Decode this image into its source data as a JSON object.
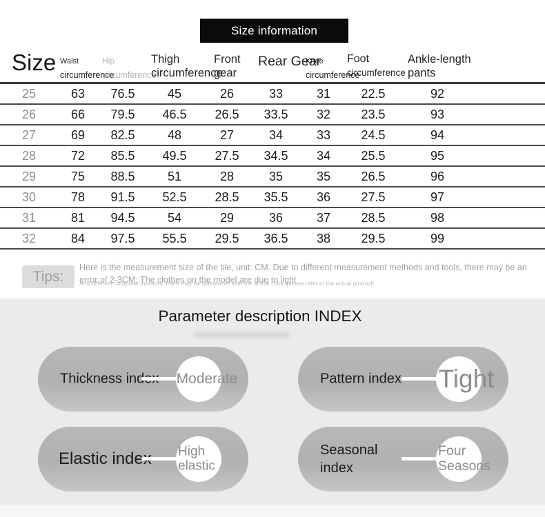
{
  "banner": {
    "title": "Size information"
  },
  "size_table": {
    "size_header": "Size",
    "columns": [
      {
        "line1": "Waist",
        "line2": "circumference"
      },
      {
        "line1": "Hip",
        "line2": "circumference"
      },
      {
        "line1": "Thigh",
        "line2": "circumference"
      },
      {
        "line1": "Front",
        "line2": "gear"
      },
      {
        "line1": "Rear Gear",
        "line2": ""
      },
      {
        "line1": "Knee",
        "line2": "circumference"
      },
      {
        "line1": "Foot",
        "line2": "circumference"
      },
      {
        "line1": "Ankle-length",
        "line2": "pants"
      }
    ],
    "rows": [
      {
        "size": "25",
        "values": [
          "63",
          "76.5",
          "45",
          "26",
          "33",
          "31",
          "22.5",
          "92"
        ]
      },
      {
        "size": "26",
        "values": [
          "66",
          "79.5",
          "46.5",
          "26.5",
          "33.5",
          "32",
          "23.5",
          "93"
        ]
      },
      {
        "size": "27",
        "values": [
          "69",
          "82.5",
          "48",
          "27",
          "34",
          "33",
          "24.5",
          "94"
        ]
      },
      {
        "size": "28",
        "values": [
          "72",
          "85.5",
          "49.5",
          "27.5",
          "34.5",
          "34",
          "25.5",
          "95"
        ]
      },
      {
        "size": "29",
        "values": [
          "75",
          "88.5",
          "51",
          "28",
          "35",
          "35",
          "26.5",
          "96"
        ]
      },
      {
        "size": "30",
        "values": [
          "78",
          "91.5",
          "52.5",
          "28.5",
          "35.5",
          "36",
          "27.5",
          "97"
        ]
      },
      {
        "size": "31",
        "values": [
          "81",
          "94.5",
          "54",
          "29",
          "36",
          "37",
          "28.5",
          "98"
        ]
      },
      {
        "size": "32",
        "values": [
          "84",
          "97.5",
          "55.5",
          "29.5",
          "36.5",
          "38",
          "29.5",
          "99"
        ]
      }
    ],
    "unit": "CM"
  },
  "tips": {
    "label": "Tips:",
    "text": "Here is the measurement size of the tile, unit: CM. Due to different measurement methods and tools, there may be an error of 2-3CM; The clothes on the model are due to light",
    "subtext": "And different computer monitors, there may be differences with the actual color, please refer to the actual product!"
  },
  "parameter_index": {
    "title": "Parameter description INDEX",
    "pills": [
      {
        "label": "Thickness index",
        "value": "Moderate"
      },
      {
        "label": "Pattern index",
        "value": "Tight"
      },
      {
        "label": "Elastic index",
        "value": "High elastic"
      },
      {
        "label": "Seasonal index",
        "value": "Four Seasons"
      }
    ]
  },
  "colors": {
    "banner_bg": "#0b0b0b",
    "banner_text": "#ffffff",
    "section_bg": "#ebebeb",
    "pill_bg": "#b4b4b4",
    "pill_value_text": "#8c8c8c",
    "table_divider": "#4a4a4a",
    "size_column_text": "#8d8d8d",
    "tips_text": "#a2a2a2"
  }
}
